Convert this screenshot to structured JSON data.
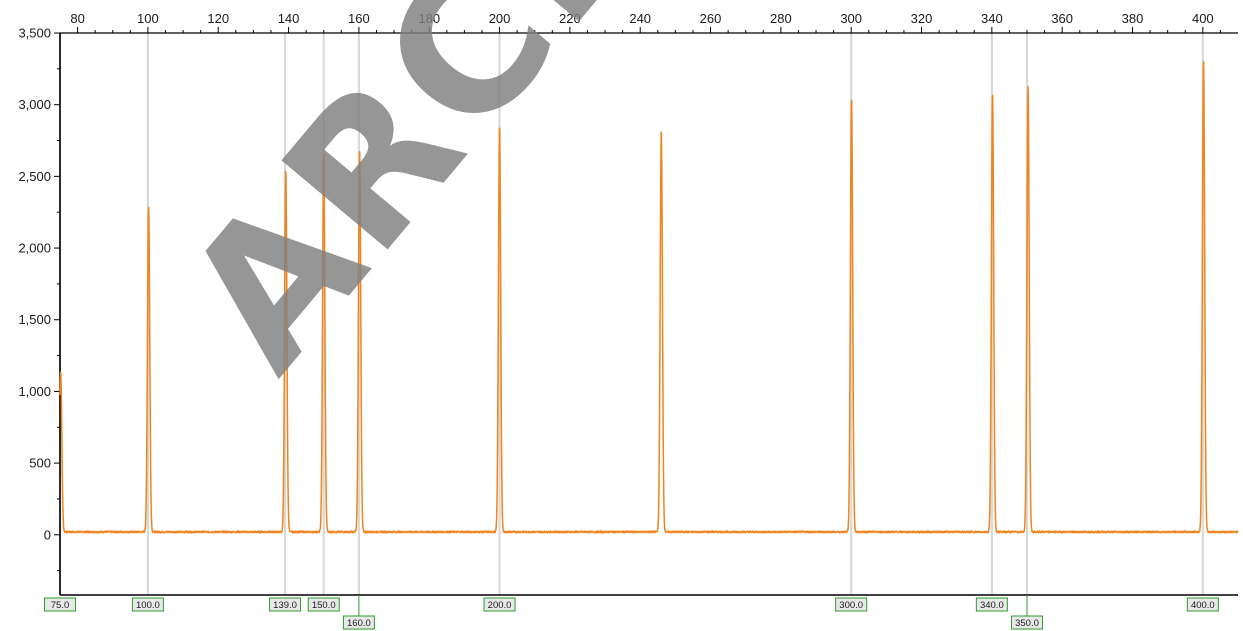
{
  "chart_data": {
    "type": "line",
    "title": "",
    "xlabel": "",
    "ylabel": "",
    "xlim": [
      75,
      410
    ],
    "ylim": [
      -420,
      3500
    ],
    "x_ticks": [
      80,
      100,
      120,
      140,
      160,
      180,
      200,
      220,
      240,
      260,
      280,
      300,
      320,
      340,
      360,
      380,
      400
    ],
    "y_ticks": [
      0,
      500,
      1000,
      1500,
      2000,
      2500,
      3000,
      3500
    ],
    "x_tick_labels": [
      "80",
      "100",
      "120",
      "140",
      "160",
      "180",
      "200",
      "220",
      "240",
      "260",
      "280",
      "300",
      "320",
      "340",
      "360",
      "380",
      "400"
    ],
    "y_tick_labels": [
      "0",
      "500",
      "1,000",
      "1,500",
      "2,000",
      "2,500",
      "3,000",
      "3,500"
    ],
    "x_axis_position": "top",
    "grid": false,
    "baseline": 20,
    "series": [
      {
        "color": "#f0841e",
        "peaks": [
          {
            "x": 75.2,
            "height": 1120
          },
          {
            "x": 100.2,
            "height": 2270
          },
          {
            "x": 139.2,
            "height": 2520
          },
          {
            "x": 150.0,
            "height": 2640
          },
          {
            "x": 160.2,
            "height": 2660
          },
          {
            "x": 200.0,
            "height": 2820
          },
          {
            "x": 246.0,
            "height": 2790
          },
          {
            "x": 300.1,
            "height": 3030
          },
          {
            "x": 340.2,
            "height": 3050
          },
          {
            "x": 350.3,
            "height": 3110
          },
          {
            "x": 400.2,
            "height": 3290
          }
        ]
      }
    ],
    "size_markers": [
      {
        "value": 75,
        "label": "75.0",
        "row": 1
      },
      {
        "value": 100,
        "label": "100.0",
        "row": 1
      },
      {
        "value": 139,
        "label": "139.0",
        "row": 1
      },
      {
        "value": 150,
        "label": "150.0",
        "row": 1
      },
      {
        "value": 160,
        "label": "160.0",
        "row": 2
      },
      {
        "value": 200,
        "label": "200.0",
        "row": 1
      },
      {
        "value": 300,
        "label": "300.0",
        "row": 1
      },
      {
        "value": 340,
        "label": "340.0",
        "row": 1
      },
      {
        "value": 350,
        "label": "350.0",
        "row": 2
      },
      {
        "value": 400,
        "label": "400.0",
        "row": 1
      }
    ],
    "colors": {
      "trace": "#f0841e",
      "marker_line": "#d9d9d9",
      "label_border": "#2e9a2e",
      "label_fill": "#e8e8e8",
      "axis": "#000000"
    }
  },
  "watermark": {
    "text": "ARCH"
  }
}
